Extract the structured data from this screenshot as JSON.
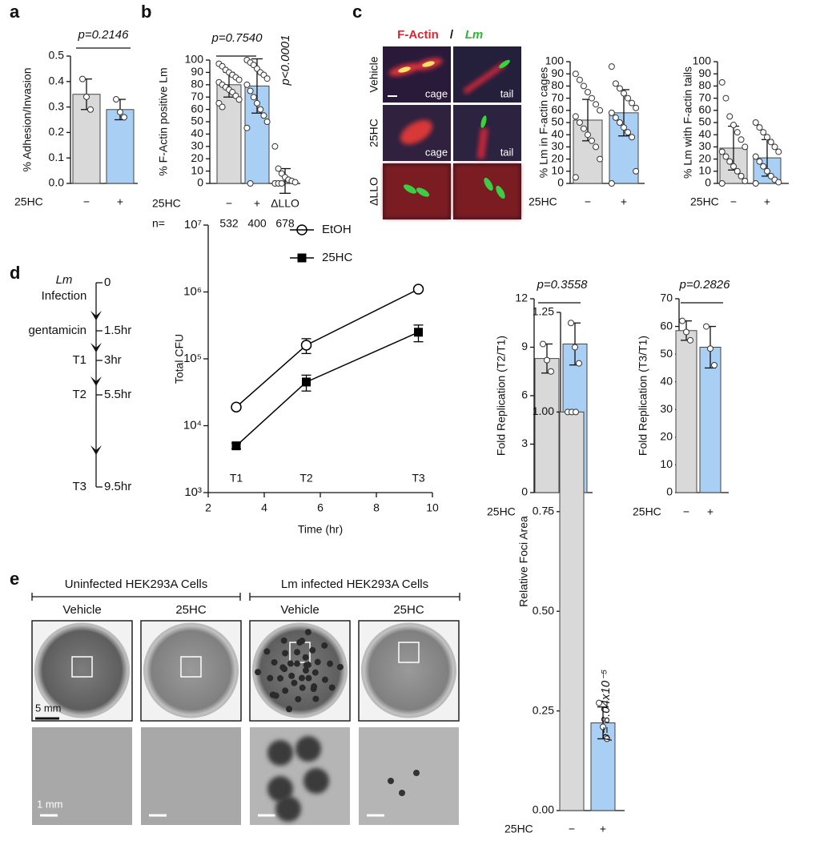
{
  "panel_letters": [
    "a",
    "b",
    "c",
    "d",
    "e"
  ],
  "chart_data": [
    {
      "type": "bar",
      "ylabel": "% Adhesion/Invasion",
      "xlabel": "25HC",
      "categories": [
        "−",
        "+"
      ],
      "values": [
        0.35,
        0.29
      ],
      "errors": [
        0.06,
        0.04
      ],
      "points": [
        [
          0.41,
          0.34,
          0.29
        ],
        [
          0.33,
          0.28,
          0.26
        ]
      ],
      "colors": [
        "#d9d9d9",
        "#a9cff5"
      ],
      "ylim": [
        0,
        0.5
      ],
      "yticks": [
        {
          "value": 0,
          "label": "0.0"
        },
        0.1,
        0.2,
        0.3,
        0.4,
        0.5
      ],
      "annotations": [
        "p=0.2146"
      ]
    },
    {
      "type": "bar",
      "ylabel": "% F-Actin positive Lm",
      "xlabel": "25HC",
      "categories": [
        "−",
        "+",
        "ΔLLO"
      ],
      "values": [
        80,
        79,
        2
      ],
      "errors": [
        10,
        22,
        10
      ],
      "points": [
        [
          97,
          95,
          92,
          90,
          88,
          86,
          84,
          82,
          80,
          78,
          76,
          74,
          71,
          68,
          65,
          62
        ],
        [
          100,
          98,
          96,
          93,
          90,
          88,
          85,
          80,
          75,
          70,
          65,
          60,
          55,
          50,
          45,
          0
        ],
        [
          30,
          12,
          8,
          5,
          3,
          2,
          1,
          0,
          0,
          0
        ]
      ],
      "colors": [
        "#d9d9d9",
        "#a9cff5",
        "#f2d66b"
      ],
      "ylim": [
        0,
        100
      ],
      "yticks": [
        0,
        10,
        20,
        30,
        40,
        50,
        60,
        70,
        80,
        90,
        100
      ],
      "n_label": "n=",
      "n": [
        532,
        400,
        678
      ],
      "annotations": [
        "p=0.7540",
        "p<0.0001"
      ]
    },
    {
      "type": "bar",
      "ylabel": "% Lm in F-actin cages",
      "xlabel": "25HC",
      "categories": [
        "−",
        "+"
      ],
      "values": [
        52,
        58
      ],
      "errors": [
        17,
        19
      ],
      "points": [
        [
          90,
          85,
          80,
          75,
          70,
          65,
          60,
          55,
          50,
          45,
          40,
          35,
          30,
          20,
          5
        ],
        [
          96,
          82,
          78,
          74,
          70,
          66,
          62,
          58,
          54,
          50,
          46,
          42,
          38,
          10,
          0
        ]
      ],
      "colors": [
        "#d9d9d9",
        "#a9cff5"
      ],
      "ylim": [
        0,
        100
      ],
      "yticks": [
        0,
        10,
        20,
        30,
        40,
        50,
        60,
        70,
        80,
        90,
        100
      ],
      "annotations": []
    },
    {
      "type": "bar",
      "ylabel": "% Lm with F-actin tails",
      "xlabel": "25HC",
      "categories": [
        "−",
        "+"
      ],
      "values": [
        29,
        21
      ],
      "errors": [
        18,
        15
      ],
      "points": [
        [
          83,
          70,
          55,
          48,
          42,
          36,
          30,
          26,
          22,
          18,
          14,
          10,
          6,
          2,
          0
        ],
        [
          50,
          46,
          42,
          38,
          34,
          30,
          26,
          22,
          18,
          14,
          10,
          6,
          3,
          1,
          0
        ]
      ],
      "colors": [
        "#d9d9d9",
        "#a9cff5"
      ],
      "ylim": [
        0,
        100
      ],
      "yticks": [
        0,
        10,
        20,
        30,
        40,
        50,
        60,
        70,
        80,
        90,
        100
      ],
      "annotations": []
    },
    {
      "type": "line",
      "ylabel": "Total CFU",
      "xlabel": "Time (hr)",
      "log_y": true,
      "x": [
        3,
        5.5,
        9.5
      ],
      "point_labels": [
        "T1",
        "T2",
        "T3"
      ],
      "series": [
        {
          "name": "EtOH",
          "color": "#000000",
          "marker": "open-circle",
          "values": [
            19000,
            160000,
            1100000
          ],
          "errors": [
            1500,
            40000,
            0
          ]
        },
        {
          "name": "25HC",
          "color": "#000000",
          "marker": "filled-square",
          "values": [
            5000,
            45000,
            250000
          ],
          "errors": [
            500,
            12000,
            70000
          ]
        }
      ],
      "xlim": [
        2,
        10
      ],
      "xticks": [
        2,
        4,
        6,
        8,
        10
      ],
      "ylim": [
        1000,
        10000000
      ],
      "yticks": [
        {
          "value": 1000,
          "label": "10³"
        },
        {
          "value": 10000,
          "label": "10⁴"
        },
        {
          "value": 100000,
          "label": "10⁵"
        },
        {
          "value": 1000000,
          "label": "10⁶"
        },
        {
          "value": 10000000,
          "label": "10⁷"
        }
      ]
    },
    {
      "type": "bar",
      "ylabel": "Fold Replication  (T2/T1)",
      "xlabel": "25HC",
      "categories": [
        "−",
        "+"
      ],
      "values": [
        8.3,
        9.2
      ],
      "errors": [
        0.9,
        1.3
      ],
      "points": [
        [
          9.2,
          8.2,
          7.5
        ],
        [
          10.5,
          9.0,
          8.0
        ]
      ],
      "colors": [
        "#d9d9d9",
        "#a9cff5"
      ],
      "ylim": [
        0,
        12
      ],
      "yticks": [
        0,
        3,
        6,
        9,
        12
      ],
      "annotations": [
        "p=0.3558"
      ]
    },
    {
      "type": "bar",
      "ylabel": "Fold Replication  (T3/T1)",
      "xlabel": "25HC",
      "categories": [
        "−",
        "+"
      ],
      "values": [
        58.5,
        52.5
      ],
      "errors": [
        3.5,
        7.5
      ],
      "points": [
        [
          62,
          58,
          55
        ],
        [
          60,
          52,
          46
        ]
      ],
      "colors": [
        "#d9d9d9",
        "#a9cff5"
      ],
      "ylim": [
        0,
        70
      ],
      "yticks": [
        0,
        10,
        20,
        30,
        40,
        50,
        60,
        70
      ],
      "annotations": [
        "p=0.2826"
      ]
    },
    {
      "type": "bar",
      "ylabel": "Relative Foci Area",
      "xlabel": "25HC",
      "categories": [
        "−",
        "+"
      ],
      "values": [
        1.0,
        0.22
      ],
      "errors": [
        0,
        0.04
      ],
      "points": [
        [
          1.0,
          1.0,
          1.0
        ],
        [
          0.27,
          0.21,
          0.18
        ]
      ],
      "colors": [
        "#d9d9d9",
        "#a9cff5"
      ],
      "ylim": [
        0,
        1.25
      ],
      "yticks": [
        {
          "value": 0,
          "label": "0.00"
        },
        {
          "value": 0.25,
          "label": "0.25"
        },
        {
          "value": 0.5,
          "label": "0.50"
        },
        {
          "value": 0.75,
          "label": "0.75"
        },
        {
          "value": 1,
          "label": "1.00"
        },
        {
          "value": 1.25,
          "label": "1.25"
        }
      ],
      "annotations": [
        "p= 8.04x10⁻⁵"
      ]
    }
  ],
  "timeline": {
    "title": "Lm",
    "event": "Infection",
    "times": [
      "0",
      "1.5hr",
      "3hr",
      "5.5hr",
      "9.5hr"
    ],
    "steps": [
      "gentamicin",
      "T1",
      "T2",
      "T3"
    ]
  },
  "micrographs": {
    "header": [
      "F-Actin",
      "/",
      "Lm"
    ],
    "rows": [
      "Vehicle",
      "25HC",
      "ΔLLO"
    ],
    "tags": [
      "cage",
      "tail",
      "cage",
      "tail"
    ]
  },
  "plates": {
    "groups": [
      "Uninfected HEK293A Cells",
      "Lm infected HEK293A Cells"
    ],
    "columns": [
      "Vehicle",
      "25HC",
      "Vehicle",
      "25HC"
    ],
    "scale_bars": [
      "5 mm",
      "1 mm"
    ]
  }
}
